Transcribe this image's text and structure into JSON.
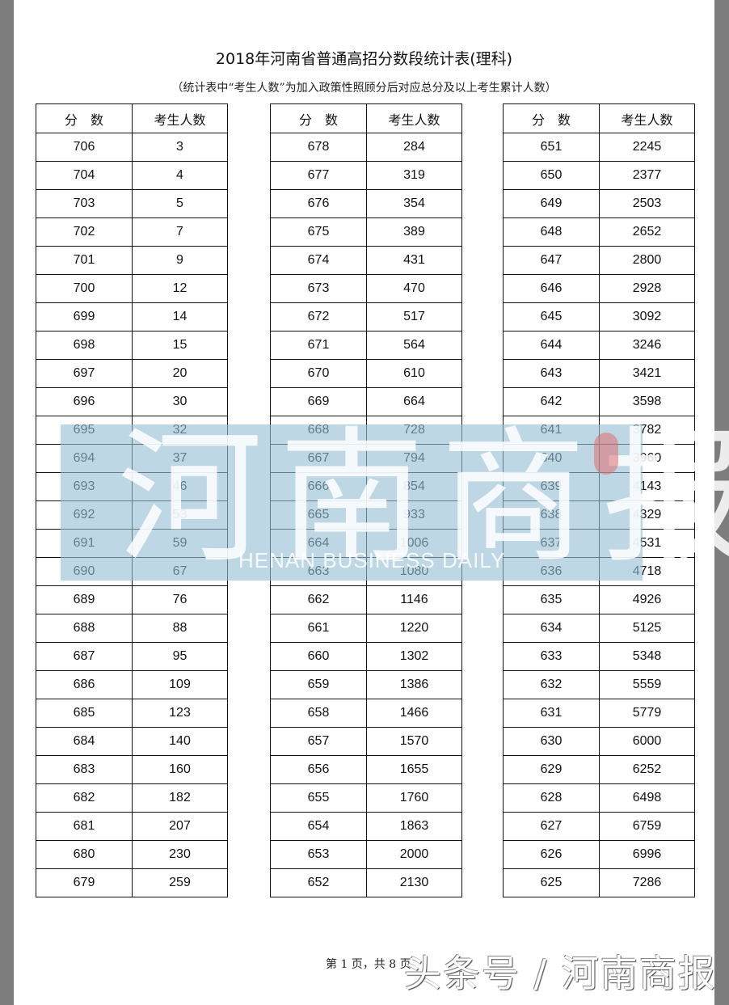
{
  "document": {
    "title": "2018年河南省普通高招分数段统计表(理科)",
    "subtitle": "（统计表中“考生人数”为加入政策性照顾分后对应总分及以上考生累计人数）",
    "column_headers": [
      "分　数",
      "考生人数"
    ],
    "tables": [
      {
        "rows": [
          [
            "706",
            "3"
          ],
          [
            "704",
            "4"
          ],
          [
            "703",
            "5"
          ],
          [
            "702",
            "7"
          ],
          [
            "701",
            "9"
          ],
          [
            "700",
            "12"
          ],
          [
            "699",
            "14"
          ],
          [
            "698",
            "15"
          ],
          [
            "697",
            "20"
          ],
          [
            "696",
            "30"
          ],
          [
            "695",
            "32"
          ],
          [
            "694",
            "37"
          ],
          [
            "693",
            "46"
          ],
          [
            "692",
            "53"
          ],
          [
            "691",
            "59"
          ],
          [
            "690",
            "67"
          ],
          [
            "689",
            "76"
          ],
          [
            "688",
            "88"
          ],
          [
            "687",
            "95"
          ],
          [
            "686",
            "109"
          ],
          [
            "685",
            "123"
          ],
          [
            "684",
            "140"
          ],
          [
            "683",
            "160"
          ],
          [
            "682",
            "182"
          ],
          [
            "681",
            "207"
          ],
          [
            "680",
            "230"
          ],
          [
            "679",
            "259"
          ]
        ]
      },
      {
        "rows": [
          [
            "678",
            "284"
          ],
          [
            "677",
            "319"
          ],
          [
            "676",
            "354"
          ],
          [
            "675",
            "389"
          ],
          [
            "674",
            "431"
          ],
          [
            "673",
            "470"
          ],
          [
            "672",
            "517"
          ],
          [
            "671",
            "564"
          ],
          [
            "670",
            "610"
          ],
          [
            "669",
            "664"
          ],
          [
            "668",
            "728"
          ],
          [
            "667",
            "794"
          ],
          [
            "666",
            "854"
          ],
          [
            "665",
            "933"
          ],
          [
            "664",
            "1006"
          ],
          [
            "663",
            "1080"
          ],
          [
            "662",
            "1146"
          ],
          [
            "661",
            "1220"
          ],
          [
            "660",
            "1302"
          ],
          [
            "659",
            "1386"
          ],
          [
            "658",
            "1466"
          ],
          [
            "657",
            "1570"
          ],
          [
            "656",
            "1655"
          ],
          [
            "655",
            "1760"
          ],
          [
            "654",
            "1863"
          ],
          [
            "653",
            "2000"
          ],
          [
            "652",
            "2130"
          ]
        ]
      },
      {
        "rows": [
          [
            "651",
            "2245"
          ],
          [
            "650",
            "2377"
          ],
          [
            "649",
            "2503"
          ],
          [
            "648",
            "2652"
          ],
          [
            "647",
            "2800"
          ],
          [
            "646",
            "2928"
          ],
          [
            "645",
            "3092"
          ],
          [
            "644",
            "3246"
          ],
          [
            "643",
            "3421"
          ],
          [
            "642",
            "3598"
          ],
          [
            "641",
            "3782"
          ],
          [
            "640",
            "3960"
          ],
          [
            "639",
            "4143"
          ],
          [
            "638",
            "4329"
          ],
          [
            "637",
            "4531"
          ],
          [
            "636",
            "4718"
          ],
          [
            "635",
            "4926"
          ],
          [
            "634",
            "5125"
          ],
          [
            "633",
            "5348"
          ],
          [
            "632",
            "5559"
          ],
          [
            "631",
            "5779"
          ],
          [
            "630",
            "6000"
          ],
          [
            "629",
            "6252"
          ],
          [
            "628",
            "6498"
          ],
          [
            "627",
            "6759"
          ],
          [
            "626",
            "6996"
          ],
          [
            "625",
            "7286"
          ]
        ]
      }
    ],
    "footer": "第 1 页，共 8 页"
  },
  "watermark": {
    "text": "河南商报",
    "english": "HENAN BUSINESS DAILY",
    "color": "#b8d4e2"
  },
  "brand_overlay": "头条号 / 河南商报"
}
